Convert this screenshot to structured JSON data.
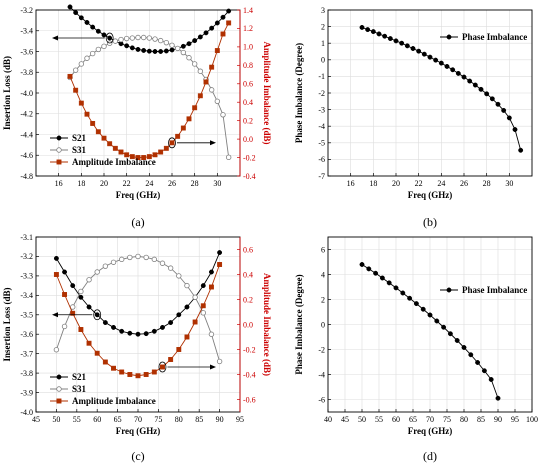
{
  "chart_data": [
    {
      "panel_id": "a",
      "caption": "(a)",
      "type": "line",
      "xlabel": "Freq (GHz)",
      "ylabel": "Insertion Loss (dB)",
      "y2label": "Amplitude Imbalance (dB)",
      "xlim": [
        14,
        32
      ],
      "xticks": [
        16,
        18,
        20,
        22,
        24,
        26,
        28,
        30
      ],
      "ylim": [
        -4.8,
        -3.2
      ],
      "yticks": [
        -3.2,
        -3.4,
        -3.6,
        -3.8,
        -4.0,
        -4.2,
        -4.4,
        -4.6,
        -4.8
      ],
      "y2lim": [
        -0.4,
        1.4
      ],
      "y2ticks": [
        1.4,
        1.2,
        1.0,
        0.8,
        0.6,
        0.4,
        0.2,
        0.0,
        -0.2,
        -0.4
      ],
      "grid": true,
      "legend_position": "middle-left",
      "x": [
        17,
        17.5,
        18,
        18.5,
        19,
        19.5,
        20,
        20.5,
        21,
        21.5,
        22,
        22.5,
        23,
        23.5,
        24,
        24.5,
        25,
        25.5,
        26,
        26.5,
        27,
        27.5,
        28,
        28.5,
        29,
        29.5,
        30,
        30.5,
        31
      ],
      "series": [
        {
          "name": "S21",
          "axis": "left",
          "marker": "filled-circle",
          "color": "#000000",
          "values": [
            -3.17,
            -3.225,
            -3.275,
            -3.32,
            -3.365,
            -3.405,
            -3.44,
            -3.47,
            -3.5,
            -3.525,
            -3.545,
            -3.565,
            -3.58,
            -3.59,
            -3.597,
            -3.6,
            -3.6,
            -3.595,
            -3.585,
            -3.57,
            -3.55,
            -3.525,
            -3.495,
            -3.46,
            -3.42,
            -3.375,
            -3.325,
            -3.27,
            -3.21
          ]
        },
        {
          "name": "S31",
          "axis": "left",
          "marker": "open-circle",
          "color": "#808080",
          "values": [
            -3.85,
            -3.78,
            -3.72,
            -3.665,
            -3.62,
            -3.58,
            -3.55,
            -3.52,
            -3.5,
            -3.485,
            -3.475,
            -3.47,
            -3.465,
            -3.465,
            -3.47,
            -3.48,
            -3.495,
            -3.515,
            -3.54,
            -3.57,
            -3.61,
            -3.66,
            -3.72,
            -3.79,
            -3.87,
            -3.97,
            -4.08,
            -4.21,
            -4.62
          ]
        },
        {
          "name": "Amplitude Imbalance",
          "axis": "right",
          "marker": "filled-square",
          "color": "#b03000",
          "values": [
            0.68,
            0.53,
            0.39,
            0.27,
            0.17,
            0.08,
            0.01,
            -0.05,
            -0.1,
            -0.14,
            -0.17,
            -0.19,
            -0.2,
            -0.2,
            -0.19,
            -0.17,
            -0.14,
            -0.1,
            -0.04,
            0.03,
            0.12,
            0.22,
            0.34,
            0.47,
            0.62,
            0.78,
            0.96,
            1.14,
            1.26
          ]
        }
      ]
    },
    {
      "panel_id": "b",
      "caption": "(b)",
      "type": "line",
      "xlabel": "Freq (GHz)",
      "ylabel": "Phase Imbalance (Degree)",
      "xlim": [
        14,
        32
      ],
      "xticks": [
        16,
        18,
        20,
        22,
        24,
        26,
        28,
        30
      ],
      "ylim": [
        -7,
        3
      ],
      "yticks": [
        3,
        2,
        1,
        0,
        -1,
        -2,
        -3,
        -4,
        -5,
        -6,
        -7
      ],
      "grid": true,
      "legend_position": "top-right",
      "x": [
        17,
        17.5,
        18,
        18.5,
        19,
        19.5,
        20,
        20.5,
        21,
        21.5,
        22,
        22.5,
        23,
        23.5,
        24,
        24.5,
        25,
        25.5,
        26,
        26.5,
        27,
        27.5,
        28,
        28.5,
        29,
        29.5,
        30,
        30.5,
        31
      ],
      "series": [
        {
          "name": "Phase Imbalance",
          "axis": "left",
          "marker": "filled-circle",
          "color": "#000000",
          "values": [
            1.95,
            1.82,
            1.7,
            1.56,
            1.42,
            1.28,
            1.14,
            1.0,
            0.84,
            0.68,
            0.52,
            0.34,
            0.16,
            -0.02,
            -0.2,
            -0.4,
            -0.6,
            -0.82,
            -1.04,
            -1.28,
            -1.52,
            -1.78,
            -2.05,
            -2.35,
            -2.68,
            -3.05,
            -3.5,
            -4.2,
            -5.45
          ]
        }
      ]
    },
    {
      "panel_id": "c",
      "caption": "(c)",
      "type": "line",
      "xlabel": "Freq (GHz)",
      "ylabel": "Insertion Loss (dB)",
      "y2label": "Amplitude Imbalance (dB)",
      "xlim": [
        45,
        95
      ],
      "xticks": [
        45,
        50,
        55,
        60,
        65,
        70,
        75,
        80,
        85,
        90,
        95
      ],
      "ylim": [
        -4.0,
        -3.1
      ],
      "yticks": [
        -3.1,
        -3.2,
        -3.3,
        -3.4,
        -3.5,
        -3.6,
        -3.7,
        -3.8,
        -3.9,
        -4.0
      ],
      "y2lim": [
        -0.7,
        0.7
      ],
      "y2ticks": [
        0.6,
        0.4,
        0.2,
        0.0,
        -0.2,
        -0.4,
        -0.6
      ],
      "grid": true,
      "legend_position": "bottom-left",
      "x": [
        50,
        52,
        54,
        56,
        58,
        60,
        62,
        64,
        66,
        68,
        70,
        72,
        74,
        76,
        78,
        80,
        82,
        84,
        86,
        88,
        90
      ],
      "series": [
        {
          "name": "S21",
          "axis": "left",
          "marker": "filled-circle",
          "color": "#000000",
          "values": [
            -3.21,
            -3.28,
            -3.35,
            -3.41,
            -3.46,
            -3.5,
            -3.54,
            -3.565,
            -3.585,
            -3.595,
            -3.6,
            -3.597,
            -3.585,
            -3.565,
            -3.54,
            -3.5,
            -3.46,
            -3.41,
            -3.35,
            -3.28,
            -3.18
          ]
        },
        {
          "name": "S31",
          "axis": "left",
          "marker": "open-circle",
          "color": "#808080",
          "values": [
            -3.68,
            -3.56,
            -3.46,
            -3.38,
            -3.32,
            -3.28,
            -3.25,
            -3.23,
            -3.215,
            -3.205,
            -3.2,
            -3.205,
            -3.215,
            -3.235,
            -3.26,
            -3.3,
            -3.35,
            -3.41,
            -3.49,
            -3.6,
            -3.74
          ]
        },
        {
          "name": "Amplitude Imbalance",
          "axis": "right",
          "marker": "filled-square",
          "color": "#b03000",
          "values": [
            0.4,
            0.24,
            0.09,
            -0.04,
            -0.15,
            -0.23,
            -0.3,
            -0.35,
            -0.38,
            -0.4,
            -0.41,
            -0.4,
            -0.38,
            -0.34,
            -0.28,
            -0.2,
            -0.1,
            0.02,
            0.15,
            0.3,
            0.48
          ]
        }
      ]
    },
    {
      "panel_id": "d",
      "caption": "(d)",
      "type": "line",
      "xlabel": "Freq (GHz)",
      "ylabel": "Phase Imbalance (Degree)",
      "xlim": [
        40,
        100
      ],
      "xticks": [
        40,
        45,
        50,
        55,
        60,
        65,
        70,
        75,
        80,
        85,
        90,
        95,
        100
      ],
      "ylim": [
        -7,
        7
      ],
      "yticks": [
        6,
        4,
        2,
        0,
        -2,
        -4,
        -6
      ],
      "grid": true,
      "legend_position": "top-right",
      "x": [
        50,
        52,
        54,
        56,
        58,
        60,
        62,
        64,
        66,
        68,
        70,
        72,
        74,
        76,
        78,
        80,
        82,
        84,
        86,
        88,
        90
      ],
      "series": [
        {
          "name": "Phase Imbalance",
          "axis": "left",
          "marker": "filled-circle",
          "color": "#000000",
          "values": [
            4.8,
            4.45,
            4.1,
            3.72,
            3.33,
            2.93,
            2.52,
            2.1,
            1.67,
            1.22,
            0.76,
            0.28,
            -0.22,
            -0.74,
            -1.28,
            -1.84,
            -2.42,
            -3.04,
            -3.7,
            -4.4,
            -5.9
          ]
        }
      ]
    }
  ]
}
